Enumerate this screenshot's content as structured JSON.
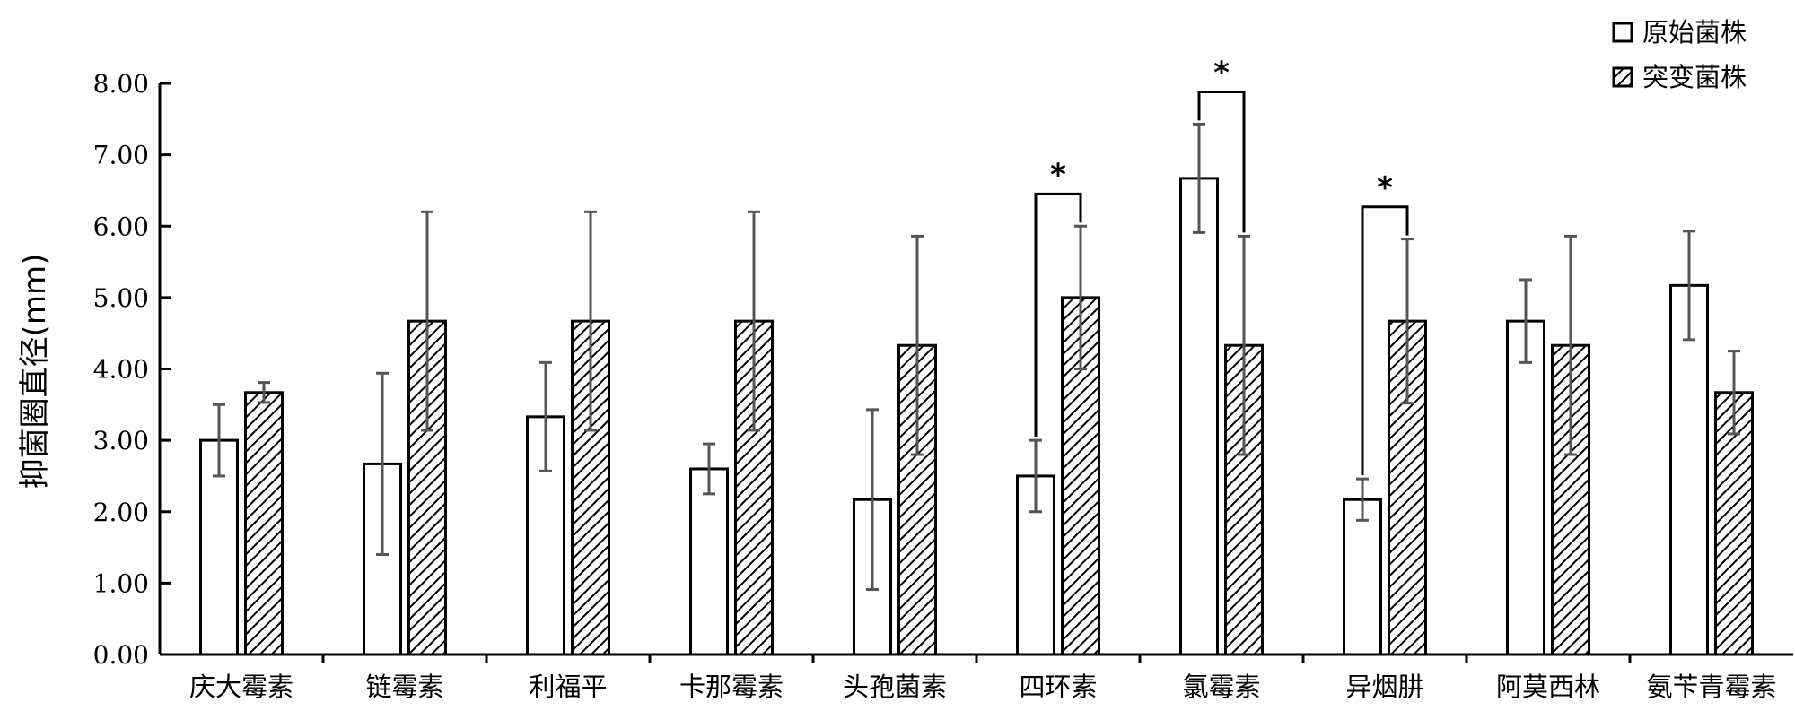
{
  "chart_data": {
    "type": "bar",
    "title": "",
    "xlabel": "",
    "ylabel": "抑菌圈直径(mm)",
    "ylim": [
      0,
      8
    ],
    "yticks": [
      0,
      1,
      2,
      3,
      4,
      5,
      6,
      7,
      8
    ],
    "ytick_labels": [
      "0.00",
      "1.00",
      "2.00",
      "3.00",
      "4.00",
      "5.00",
      "6.00",
      "7.00",
      "8.00"
    ],
    "grid": false,
    "legend_position": "top-right",
    "categories": [
      "庆大霉素",
      "链霉素",
      "利福平",
      "卡那霉素",
      "头孢菌素",
      "四环素",
      "氯霉素",
      "异烟肼",
      "阿莫西林",
      "氨苄青霉素"
    ],
    "series": [
      {
        "name": "原始菌株",
        "pattern": "none",
        "values": [
          3.0,
          2.67,
          3.33,
          2.6,
          2.17,
          2.5,
          6.67,
          2.17,
          4.67,
          5.17
        ],
        "errors": [
          0.5,
          1.27,
          0.76,
          0.35,
          1.26,
          0.5,
          0.76,
          0.29,
          0.58,
          0.76
        ]
      },
      {
        "name": "突变菌株",
        "pattern": "hatch",
        "values": [
          3.67,
          4.67,
          4.67,
          4.67,
          4.33,
          5.0,
          4.33,
          4.67,
          4.33,
          3.67
        ],
        "errors": [
          0.14,
          1.53,
          1.53,
          1.53,
          1.53,
          1.0,
          1.53,
          1.15,
          1.53,
          0.58
        ]
      }
    ],
    "significance": [
      {
        "category_index": 5,
        "label": "*"
      },
      {
        "category_index": 6,
        "label": "*"
      },
      {
        "category_index": 7,
        "label": "*"
      }
    ],
    "colors": {
      "axis": "#000000",
      "errorbar": "#555555",
      "bar_fill": "#ffffff",
      "hatch": "#000000"
    }
  }
}
